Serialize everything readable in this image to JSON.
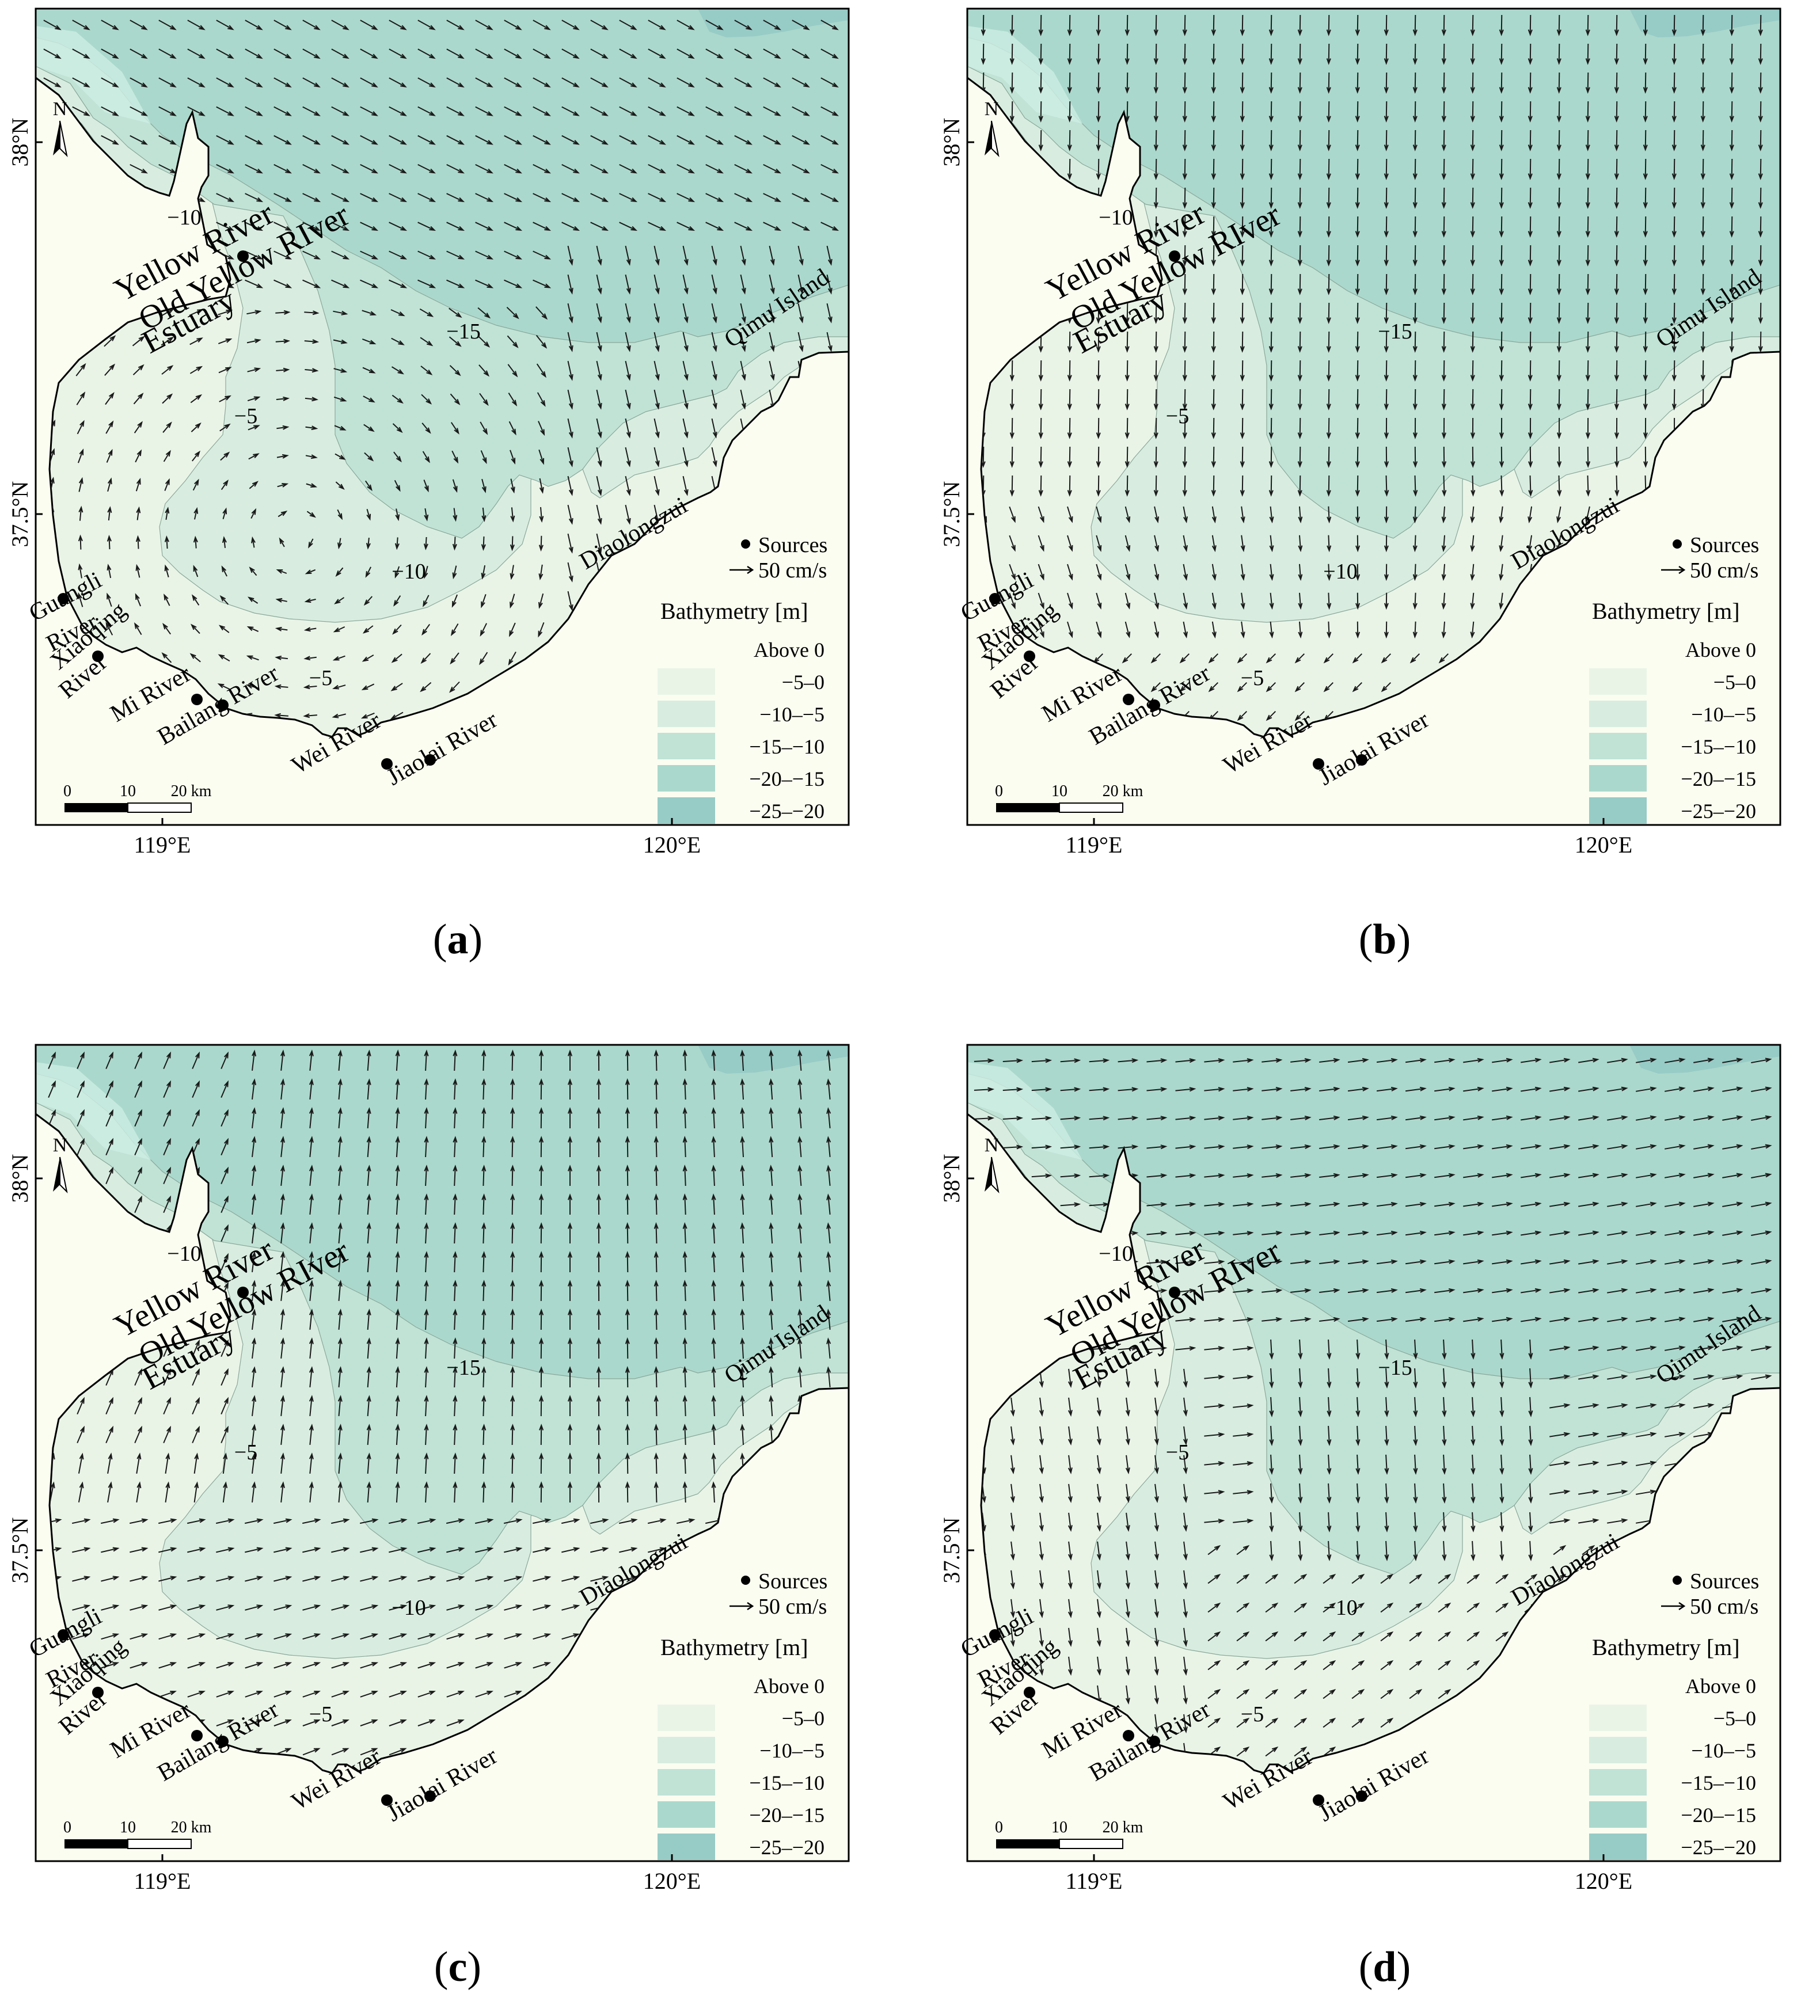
{
  "legend": {
    "sources_label": "Sources",
    "current_label": "50 cm/s",
    "bathymetry_title": "Bathymetry [m]",
    "classes": [
      {
        "label": "Above 0",
        "color": "#fbfdf1"
      },
      {
        "label": "−5–0",
        "color": "#e9f4e7"
      },
      {
        "label": "−10–−5",
        "color": "#d8ede0"
      },
      {
        "label": "−15–−10",
        "color": "#c0e3d6"
      },
      {
        "label": "−20–−15",
        "color": "#abd8cc"
      },
      {
        "label": "−25–−20",
        "color": "#97cbc6"
      }
    ]
  },
  "axes": {
    "lat_labels": [
      "38°N",
      "37.5°N"
    ],
    "lon_labels": [
      "119°E",
      "120°E"
    ]
  },
  "north_label": "N",
  "scalebar": {
    "ticks": [
      "0",
      "10",
      "20 km"
    ]
  },
  "contour_labels": {
    "c10a": "−10",
    "c15": "−15",
    "c5a": "−5",
    "c10b": "−10",
    "c5b": "−5"
  },
  "place_labels": {
    "yellow": "Yellow River",
    "oldyellow": "Old Yellow RIver",
    "estuary": "Estuary",
    "qimu": "Qimu Island",
    "diaolong": "Diaolongzui",
    "guangli1": "Guangli",
    "guangli2": "River",
    "xiaoqing1": "Xiaoqing",
    "xiaoqing2": "River",
    "mi": "Mi River",
    "bailang": "Bailang River",
    "wei": "Wei River",
    "jiaolai": "Jiaolai River"
  },
  "panels": [
    {
      "id": "a",
      "caption": "a",
      "pattern": "a"
    },
    {
      "id": "b",
      "caption": "b",
      "pattern": "b"
    },
    {
      "id": "c",
      "caption": "c",
      "pattern": "c"
    },
    {
      "id": "d",
      "caption": "d",
      "pattern": "d"
    }
  ]
}
